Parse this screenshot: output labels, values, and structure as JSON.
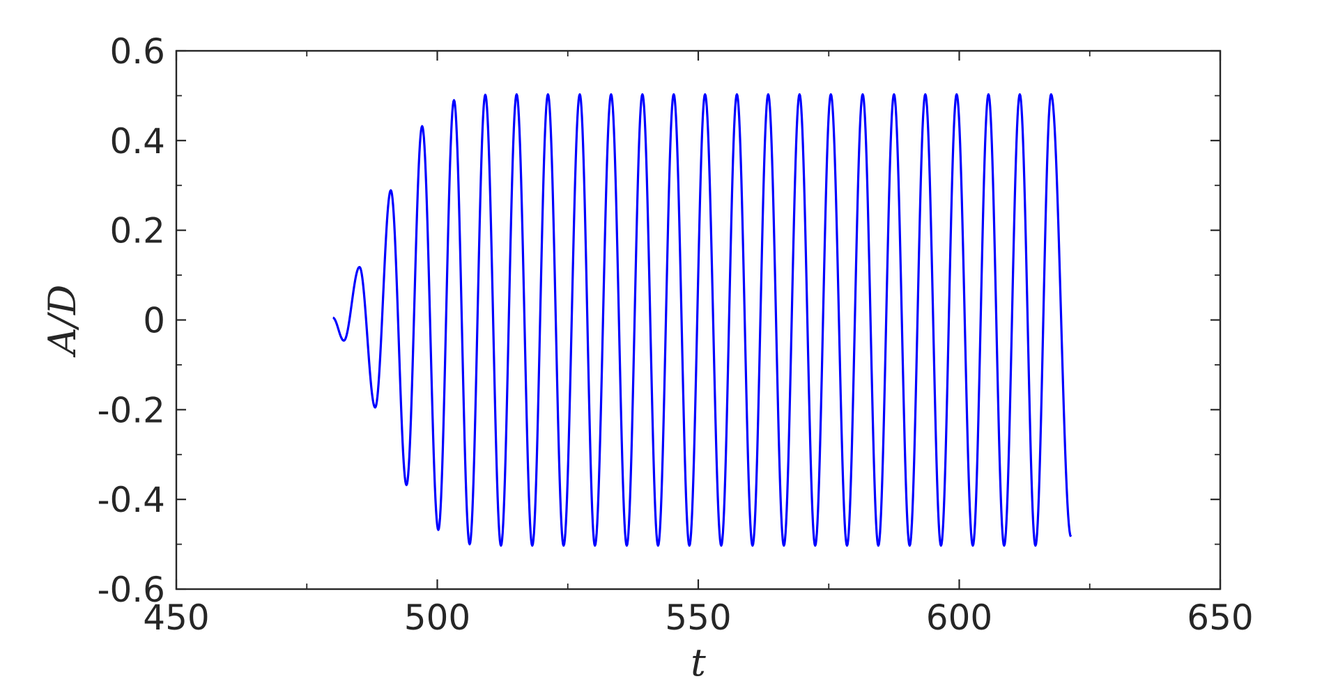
{
  "chart_data": {
    "type": "line",
    "title": "",
    "xlabel": "t",
    "ylabel": "A/D",
    "xlim": [
      450,
      650
    ],
    "ylim": [
      -0.6,
      0.6
    ],
    "xticks": [
      450,
      500,
      550,
      600,
      650
    ],
    "xtick_labels": [
      "450",
      "500",
      "550",
      "600",
      "650"
    ],
    "yticks": [
      -0.6,
      -0.4,
      -0.2,
      0,
      0.2,
      0.4,
      0.6
    ],
    "ytick_labels": [
      "-0.6",
      "-0.4",
      "-0.2",
      "0",
      "0.2",
      "0.4",
      "0.6"
    ],
    "grid": false,
    "legend": "none",
    "colors": {
      "series": "#0000ff",
      "axis": "#262626"
    },
    "series": [
      {
        "description_free_note": "",
        "x": [
          480,
          482.1,
          485.1,
          488.1,
          491.1,
          494.1,
          497.1,
          500.2,
          503.2,
          506.2,
          509.2,
          512.2,
          515.2,
          518.2,
          521.2,
          524.2,
          527.3,
          530.2,
          533.3,
          536.3,
          539.3,
          542.3,
          545.3,
          548.3,
          551.3,
          554.4,
          557.4,
          560.4,
          563.4,
          566.4,
          569.4,
          572.4,
          575.4,
          578.5,
          581.5,
          584.5,
          587.5,
          590.5,
          593.5,
          596.5,
          599.5,
          602.6,
          605.6,
          608.6,
          611.6,
          614.6,
          617.6,
          621.4
        ],
        "y": [
          0.005,
          -0.046,
          0.118,
          -0.195,
          0.289,
          -0.368,
          0.432,
          -0.468,
          0.49,
          -0.5,
          0.502,
          -0.503,
          0.503,
          -0.503,
          0.503,
          -0.503,
          0.503,
          -0.503,
          0.503,
          -0.503,
          0.503,
          -0.503,
          0.503,
          -0.503,
          0.503,
          -0.503,
          0.503,
          -0.503,
          0.503,
          -0.503,
          0.503,
          -0.503,
          0.503,
          -0.503,
          0.503,
          -0.503,
          0.503,
          -0.503,
          0.503,
          -0.503,
          0.503,
          -0.503,
          0.503,
          -0.503,
          0.503,
          -0.503,
          0.503,
          -0.483
        ]
      }
    ]
  }
}
